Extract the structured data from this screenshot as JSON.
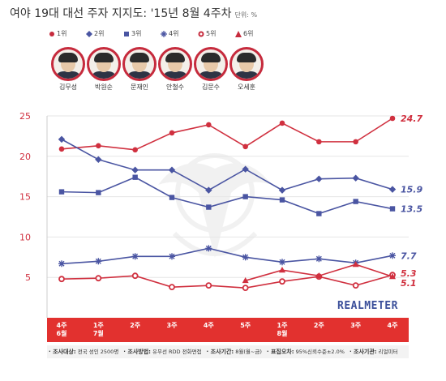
{
  "header": {
    "title": "여야 19대 대선 주자 지지도: '15년 8월 4주차",
    "unit": "단위: %"
  },
  "legend": [
    {
      "label": "1위",
      "marker": "circle",
      "color": "#c62b3d"
    },
    {
      "label": "2위",
      "marker": "diamond",
      "color": "#4a55a2"
    },
    {
      "label": "3위",
      "marker": "square",
      "color": "#4a55a2"
    },
    {
      "label": "4위",
      "marker": "asterisk",
      "color": "#4a55a2"
    },
    {
      "label": "5위",
      "marker": "ring",
      "color": "#c62b3d"
    },
    {
      "label": "6위",
      "marker": "triangle",
      "color": "#c62b3d"
    }
  ],
  "candidates": [
    {
      "name": "김무성"
    },
    {
      "name": "박원순"
    },
    {
      "name": "문재인"
    },
    {
      "name": "안철수"
    },
    {
      "name": "김문수"
    },
    {
      "name": "오세훈"
    }
  ],
  "chart_data": {
    "type": "line",
    "categories": [
      "4주\n6월",
      "1주\n7월",
      "2주",
      "3주",
      "4주",
      "5주",
      "1주\n8월",
      "2주",
      "3주",
      "4주"
    ],
    "ylim": [
      0,
      25
    ],
    "yticks": [
      5,
      10,
      15,
      20,
      25
    ],
    "grid": true,
    "series": [
      {
        "values": [
          20.9,
          21.3,
          20.8,
          22.9,
          23.9,
          21.2,
          24.1,
          21.8,
          21.8,
          24.7
        ],
        "color": "#d0303f",
        "marker": "circle",
        "end_label": "24.7"
      },
      {
        "values": [
          22.1,
          19.6,
          18.3,
          18.3,
          15.8,
          18.4,
          15.8,
          17.2,
          17.3,
          15.9
        ],
        "color": "#4a55a2",
        "marker": "diamond",
        "end_label": "15.9"
      },
      {
        "values": [
          15.6,
          15.5,
          17.4,
          14.9,
          13.7,
          15.0,
          14.6,
          12.9,
          14.4,
          13.5
        ],
        "color": "#4a55a2",
        "marker": "square",
        "end_label": "13.5"
      },
      {
        "values": [
          6.7,
          7.0,
          7.6,
          7.6,
          8.6,
          7.5,
          6.9,
          7.3,
          6.8,
          7.7
        ],
        "color": "#4a55a2",
        "marker": "asterisk",
        "end_label": "7.7"
      },
      {
        "values": [
          4.8,
          4.9,
          5.2,
          3.8,
          4.0,
          3.7,
          4.5,
          5.1,
          4.0,
          5.3
        ],
        "color": "#d0303f",
        "marker": "ring",
        "end_label": "5.3"
      },
      {
        "values": [
          null,
          null,
          null,
          null,
          null,
          4.6,
          5.9,
          5.2,
          6.6,
          5.1
        ],
        "color": "#d0303f",
        "marker": "triangle",
        "end_label": "5.1"
      }
    ]
  },
  "brand": "REALMETER",
  "footnote": [
    {
      "key": "조사대상:",
      "value": "전국 성인 2500명"
    },
    {
      "key": "조사방법:",
      "value": "유무선 RDD 전화면접"
    },
    {
      "key": "조사기간:",
      "value": "8월(월~금)"
    },
    {
      "key": "표집오차:",
      "value": "95%신뢰수준±2.0%"
    },
    {
      "key": "조사기관:",
      "value": "리얼미터"
    }
  ]
}
